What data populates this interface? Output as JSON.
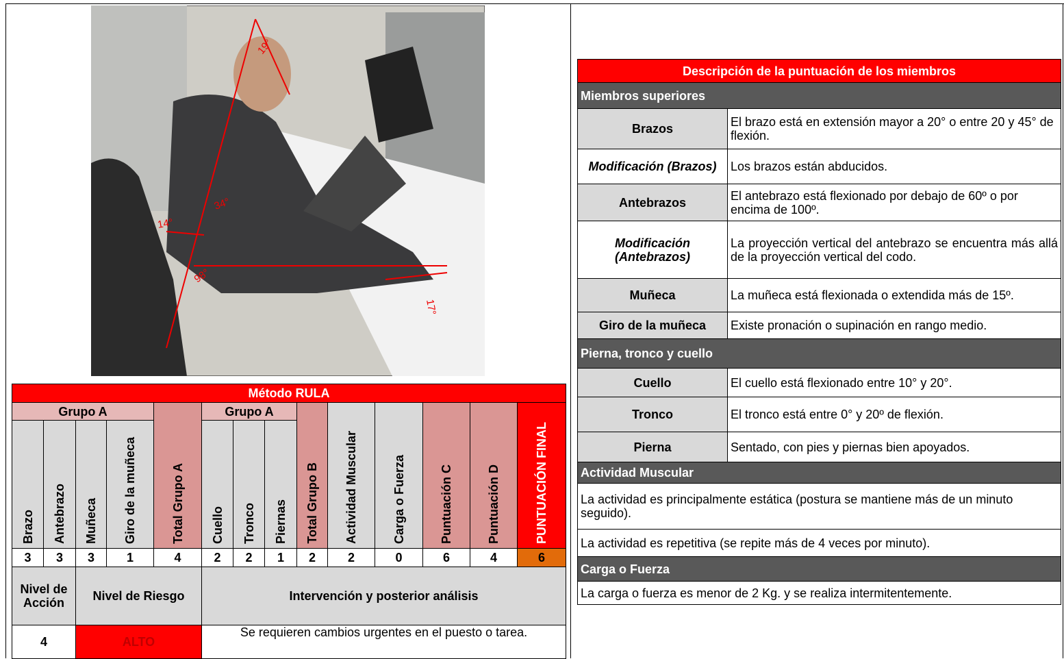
{
  "photo": {
    "angles": [
      "19°",
      "34°",
      "14°",
      "98°",
      "17°"
    ]
  },
  "rula": {
    "title": "Método RULA",
    "groups": [
      "Grupo A",
      "Grupo A"
    ],
    "headers": [
      "Brazo",
      "Antebrazo",
      "Muñeca",
      "Giro de la muñeca",
      "Total Grupo A",
      "Cuello",
      "Tronco",
      "Piernas",
      "Total Grupo B",
      "Actividad Muscular",
      "Carga o Fuerza",
      "Puntuación C",
      "Puntuación D",
      "PUNTUACIÓN FINAL"
    ],
    "scores": [
      3,
      3,
      3,
      1,
      4,
      2,
      2,
      1,
      2,
      2,
      0,
      6,
      4,
      6
    ],
    "summary_headers": [
      "Nivel de Acción",
      "Nivel de Riesgo",
      "Intervención y posterior análisis"
    ],
    "summary_values": [
      4,
      "ALTO",
      "Se requieren cambios urgentes en el puesto o tarea."
    ]
  },
  "description": {
    "title": "Descripción de la puntuación de los miembros",
    "sections": [
      {
        "heading": "Miembros superiores",
        "rows": [
          {
            "label": "Brazos",
            "text": "El brazo está en extensión mayor a 20° o entre 20 y 45° de flexión."
          },
          {
            "label": "Modificación (Brazos)",
            "text": "Los brazos están abducidos.",
            "italic": true
          },
          {
            "label": "Antebrazos",
            "text": "El antebrazo está flexionado por debajo de 60º o por encima de 100º."
          },
          {
            "label": "Modificación (Antebrazos)",
            "text": "La proyección vertical del antebrazo se encuentra más allá de la proyección vertical del codo.",
            "italic": true
          },
          {
            "label": "Muñeca",
            "text": "La muñeca está flexionada o extendida más de 15º."
          },
          {
            "label": "Giro de la muñeca",
            "text": "Existe pronación o supinación en rango medio."
          }
        ]
      },
      {
        "heading": "Pierna, tronco y cuello",
        "rows": [
          {
            "label": "Cuello",
            "text": "El cuello está flexionado entre 10° y 20°."
          },
          {
            "label": "Tronco",
            "text": "El tronco está entre 0° y 20º de flexión."
          },
          {
            "label": "Pierna",
            "text": "Sentado, con pies y piernas bien apoyados."
          }
        ]
      },
      {
        "heading": "Actividad Muscular",
        "rows": [
          {
            "text": "La actividad es principalmente estática (postura se mantiene más de un minuto seguido)."
          },
          {
            "text": "La actividad es repetitiva (se repite más de 4 veces por minuto)."
          }
        ]
      },
      {
        "heading": "Carga o Fuerza",
        "rows": [
          {
            "text": "La carga o fuerza es menor de 2 Kg. y se realiza intermitentemente."
          }
        ]
      }
    ]
  }
}
